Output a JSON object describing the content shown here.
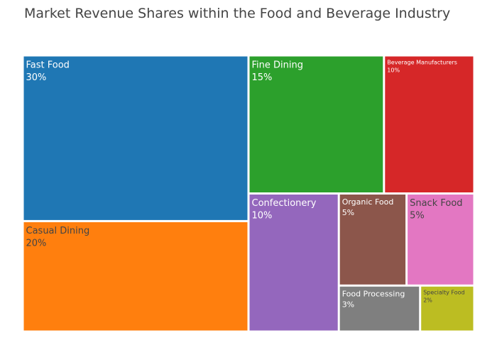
{
  "chart_data": {
    "type": "treemap",
    "title": "Market Revenue Shares within the Food and Beverage Industry",
    "items": [
      {
        "name": "Fast Food",
        "value": 30,
        "value_label": "30%",
        "color": "#1f77b4",
        "text_color": "#ffffff"
      },
      {
        "name": "Casual Dining",
        "value": 20,
        "value_label": "20%",
        "color": "#ff7f0e",
        "text_color": "#444444"
      },
      {
        "name": "Fine Dining",
        "value": 15,
        "value_label": "15%",
        "color": "#2ca02c",
        "text_color": "#ffffff"
      },
      {
        "name": "Beverage Manufacturers",
        "value": 10,
        "value_label": "10%",
        "color": "#d62728",
        "text_color": "#ffffff"
      },
      {
        "name": "Confectionery",
        "value": 10,
        "value_label": "10%",
        "color": "#9467bd",
        "text_color": "#ffffff"
      },
      {
        "name": "Organic Food",
        "value": 5,
        "value_label": "5%",
        "color": "#8c564b",
        "text_color": "#ffffff"
      },
      {
        "name": "Snack Food",
        "value": 5,
        "value_label": "5%",
        "color": "#e377c2",
        "text_color": "#444444"
      },
      {
        "name": "Food Processing",
        "value": 3,
        "value_label": "3%",
        "color": "#7f7f7f",
        "text_color": "#ffffff"
      },
      {
        "name": "Specialty Food",
        "value": 2,
        "value_label": "2%",
        "color": "#bcbd22",
        "text_color": "#444444"
      }
    ]
  }
}
